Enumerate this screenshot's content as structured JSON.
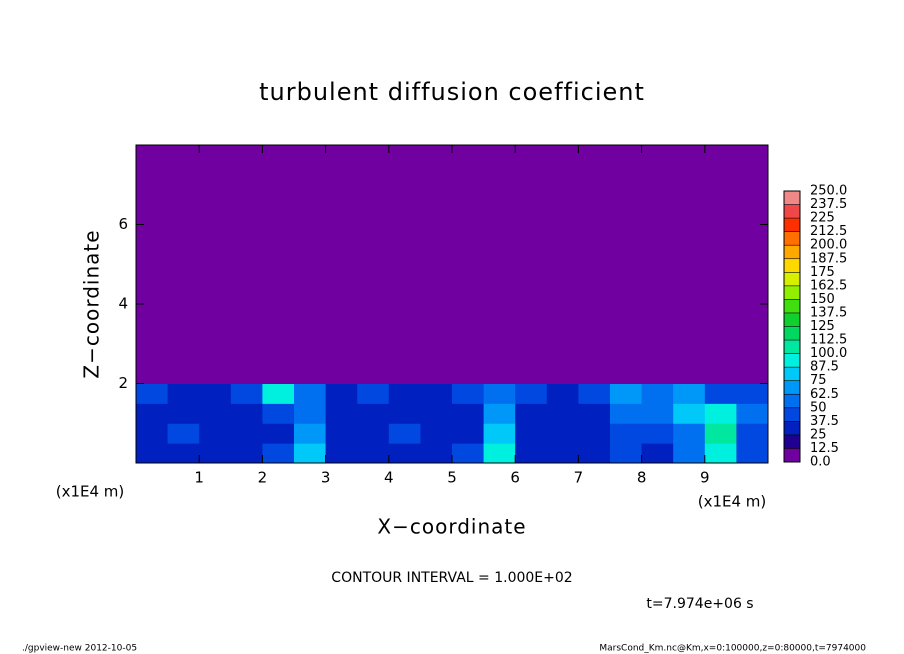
{
  "chart_data": {
    "type": "heatmap",
    "title": "turbulent diffusion coefficient",
    "xlabel": "X−coordinate",
    "ylabel": "Z−coordinate",
    "xunit": "(x1E4 m)",
    "xunit2": "(x1E4 m)",
    "annotation": "CONTOUR INTERVAL = 1.000E+02",
    "time_label": "t=7.974e+06 s",
    "footer_left": "./gpview-new  2012-10-05",
    "footer_right": "MarsCond_Km.nc@Km,x=0:100000,z=0:80000,t=7974000",
    "xlim": [
      0,
      10
    ],
    "ylim": [
      0,
      8
    ],
    "xticks": [
      1,
      2,
      3,
      4,
      5,
      6,
      7,
      8,
      9
    ],
    "yticks": [
      2,
      4,
      6
    ],
    "x": [
      0.25,
      0.75,
      1.25,
      1.75,
      2.25,
      2.75,
      3.25,
      3.75,
      4.25,
      4.75,
      5.25,
      5.75,
      6.25,
      6.75,
      7.25,
      7.75,
      8.25,
      8.75,
      9.25,
      9.75
    ],
    "y": [
      0.25,
      0.75,
      1.25,
      1.75,
      2.25,
      2.75,
      3.25,
      3.75,
      4.25,
      4.75,
      5.25,
      5.75,
      6.25,
      6.75,
      7.25,
      7.75
    ],
    "z": [
      [
        30,
        25,
        30,
        35,
        40,
        80,
        30,
        25,
        35,
        30,
        40,
        90,
        30,
        25,
        30,
        40,
        35,
        60,
        90,
        40
      ],
      [
        25,
        45,
        30,
        25,
        35,
        70,
        30,
        30,
        40,
        35,
        30,
        85,
        35,
        25,
        30,
        45,
        40,
        55,
        110,
        45
      ],
      [
        30,
        35,
        25,
        30,
        45,
        60,
        25,
        35,
        30,
        30,
        35,
        70,
        30,
        30,
        35,
        50,
        60,
        80,
        90,
        50
      ],
      [
        40,
        35,
        30,
        40,
        90,
        50,
        30,
        40,
        35,
        30,
        40,
        60,
        40,
        30,
        40,
        70,
        50,
        70,
        40,
        45
      ],
      [
        0,
        0,
        0,
        0,
        0,
        0,
        0,
        0,
        0,
        0,
        0,
        0,
        0,
        0,
        0,
        0,
        0,
        0,
        0,
        0
      ],
      [
        0,
        0,
        0,
        0,
        0,
        0,
        0,
        0,
        0,
        0,
        0,
        0,
        0,
        0,
        0,
        0,
        0,
        0,
        0,
        0
      ],
      [
        0,
        0,
        0,
        0,
        0,
        0,
        0,
        0,
        0,
        0,
        0,
        0,
        0,
        0,
        0,
        0,
        0,
        0,
        0,
        0
      ],
      [
        0,
        0,
        0,
        0,
        0,
        0,
        0,
        0,
        0,
        0,
        0,
        0,
        0,
        0,
        0,
        0,
        0,
        0,
        0,
        0
      ],
      [
        0,
        0,
        0,
        0,
        0,
        0,
        0,
        0,
        0,
        0,
        0,
        0,
        0,
        0,
        0,
        0,
        0,
        0,
        0,
        0
      ],
      [
        0,
        0,
        0,
        0,
        0,
        0,
        0,
        0,
        0,
        0,
        0,
        0,
        0,
        0,
        0,
        0,
        0,
        0,
        0,
        0
      ],
      [
        0,
        0,
        0,
        0,
        0,
        0,
        0,
        0,
        0,
        0,
        0,
        0,
        0,
        0,
        0,
        0,
        0,
        0,
        0,
        0
      ],
      [
        0,
        0,
        0,
        0,
        0,
        0,
        0,
        0,
        0,
        0,
        0,
        0,
        0,
        0,
        0,
        0,
        0,
        0,
        0,
        0
      ],
      [
        0,
        0,
        0,
        0,
        0,
        0,
        0,
        0,
        0,
        0,
        0,
        0,
        0,
        0,
        0,
        0,
        0,
        0,
        0,
        0
      ],
      [
        0,
        0,
        0,
        0,
        0,
        0,
        0,
        0,
        0,
        0,
        0,
        0,
        0,
        0,
        0,
        0,
        0,
        0,
        0,
        0
      ],
      [
        0,
        0,
        0,
        0,
        0,
        0,
        0,
        0,
        0,
        0,
        0,
        0,
        0,
        0,
        0,
        0,
        0,
        0,
        0,
        0
      ],
      [
        0,
        0,
        0,
        0,
        0,
        0,
        0,
        0,
        0,
        0,
        0,
        0,
        0,
        0,
        0,
        0,
        0,
        0,
        0,
        0
      ]
    ],
    "levels": [
      {
        "value": 0,
        "label": "0.0"
      },
      12.5,
      25,
      37.5,
      50,
      62.5,
      75,
      87.5,
      {
        "value": 100,
        "label": "100.0"
      },
      112.5,
      125,
      137.5,
      150,
      162.5,
      175,
      187.5,
      {
        "value": 200,
        "label": "200.0"
      },
      212.5,
      225,
      237.5,
      {
        "value": 250,
        "label": "250.0"
      }
    ],
    "level_colors": [
      "#7000a0",
      "#200090",
      "#0020c0",
      "#0048e0",
      "#0070f0",
      "#0098f8",
      "#00c8f8",
      "#00f0e0",
      "#00e8a0",
      "#00d860",
      "#10d030",
      "#40e010",
      "#90f000",
      "#d8f000",
      "#ffd800",
      "#ffa800",
      "#ff7000",
      "#ff3000",
      "#f04848",
      "#f08888"
    ]
  }
}
